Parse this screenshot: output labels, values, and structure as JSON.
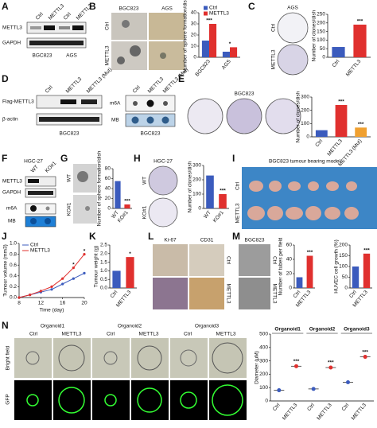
{
  "panels": {
    "labels": [
      "A",
      "B",
      "C",
      "D",
      "E",
      "F",
      "G",
      "H",
      "I",
      "J",
      "K",
      "L",
      "M",
      "N"
    ],
    "a": [
      "Ctrl",
      "METTL3",
      "Ctrl",
      "METTL3",
      "METTL3",
      "GAPDH",
      "BGC823",
      "AGS"
    ],
    "b": [
      "BGC823",
      "AGS",
      "Ctrl",
      "METTL3"
    ],
    "c": [
      "AGS",
      "Ctrl",
      "METTL3"
    ],
    "d": [
      "Ctrl",
      "METTL3",
      "METTL3 (Mut)",
      "Ctrl",
      "METTL3",
      "METTL3 (Mut)",
      "Flag-METTL3",
      "β-actin",
      "m6A",
      "MB",
      "BGC823",
      "BGC823"
    ],
    "e": [
      "BGC823"
    ],
    "f": [
      "HGC-27",
      "WT",
      "KO#1",
      "METTL3",
      "GAPDH",
      "m6A",
      "MB"
    ],
    "g": [
      "WT",
      "KO#1"
    ],
    "h": [
      "HGC-27",
      "WT",
      "KO#1"
    ],
    "i": [
      "BGC823 tumour bearing model",
      "Ctrl",
      "METTL3"
    ],
    "l": [
      "Ki-67",
      "CD31",
      "Ctrl",
      "METTL3"
    ],
    "m": [
      "BGC823",
      "Ctrl",
      "METTL3"
    ],
    "n": [
      "Organoid1",
      "Organoid2",
      "Organoid3",
      "Ctrl",
      "METTL3",
      "Ctrl",
      "METTL3",
      "Ctrl",
      "METTL3",
      "Bright field",
      "GFP"
    ]
  },
  "chart_data": [
    {
      "type": "bar",
      "y_label": "Number of sphere formation/dish",
      "categories": [
        "BGC823",
        "AGS"
      ],
      "series": [
        {
          "name": "Ctrl",
          "color": "#3b5bbd",
          "values": [
            15,
            5
          ]
        },
        {
          "name": "METTL3",
          "color": "#e0302e",
          "values": [
            30,
            9
          ]
        }
      ],
      "ylim": [
        0,
        40
      ],
      "yticks": [
        0,
        10,
        20,
        30,
        40
      ],
      "annotations": [
        "***",
        "*"
      ]
    },
    {
      "type": "bar",
      "y_label": "Number of clones/dish",
      "categories": [
        "Ctrl",
        "METTL3"
      ],
      "values": [
        60,
        190
      ],
      "colors": [
        "#3b5bbd",
        "#e0302e"
      ],
      "ylim": [
        0,
        250
      ],
      "yticks": [
        0,
        50,
        100,
        150,
        200,
        250
      ],
      "annotations": [
        "***"
      ]
    },
    {
      "type": "bar",
      "y_label": "Number of clones/dish",
      "categories": [
        "Ctrl",
        "METTL3",
        "METTL3 (Mut)"
      ],
      "values": [
        50,
        240,
        70
      ],
      "colors": [
        "#3b5bbd",
        "#e0302e",
        "#f0a030"
      ],
      "ylim": [
        0,
        300
      ],
      "yticks": [
        0,
        100,
        200,
        300
      ],
      "annotations": [
        "***",
        "***"
      ]
    },
    {
      "type": "bar",
      "y_label": "Number of sphere formation/dish",
      "categories": [
        "WT",
        "KO#1"
      ],
      "values": [
        55,
        8
      ],
      "colors": [
        "#3b5bbd",
        "#e0302e"
      ],
      "ylim": [
        0,
        80
      ],
      "yticks": [
        0,
        20,
        40,
        60,
        80
      ],
      "annotations": [
        "***"
      ]
    },
    {
      "type": "bar",
      "y_label": "Number of clones/dish",
      "categories": [
        "WT",
        "KO#1"
      ],
      "values": [
        230,
        100
      ],
      "colors": [
        "#3b5bbd",
        "#e0302e"
      ],
      "ylim": [
        0,
        300
      ],
      "yticks": [
        0,
        100,
        200,
        300
      ],
      "annotations": [
        "***"
      ]
    },
    {
      "type": "line",
      "y_label": "Tumour volume (mm3)",
      "x_label": "Time (day)",
      "x": [
        8,
        10,
        12,
        14,
        16,
        18,
        20
      ],
      "series": [
        {
          "name": "Ctrl",
          "color": "#3b5bbd",
          "values": [
            0,
            0.05,
            0.1,
            0.15,
            0.25,
            0.35,
            0.45
          ]
        },
        {
          "name": "METTL3",
          "color": "#e0302e",
          "values": [
            0,
            0.05,
            0.12,
            0.2,
            0.35,
            0.55,
            0.8
          ]
        }
      ],
      "xlim": [
        8,
        20
      ],
      "xticks": [
        8,
        12,
        16,
        20
      ],
      "ylim": [
        0,
        1
      ],
      "yticks": [
        {
          "value": 0,
          "label": "0.0"
        },
        0.2,
        0.4,
        0.6,
        0.8,
        {
          "value": 1,
          "label": "1.0"
        }
      ],
      "annotations": [
        "*",
        "*"
      ]
    },
    {
      "type": "bar",
      "y_label": "Tumour weight (g)",
      "categories": [
        "Ctrl",
        "METTL3"
      ],
      "values": [
        1.0,
        1.8
      ],
      "colors": [
        "#3b5bbd",
        "#e0302e"
      ],
      "ylim": [
        0,
        2.5
      ],
      "yticks": [
        {
          "value": 0,
          "label": "0.0"
        },
        0.5,
        {
          "value": 1,
          "label": "1.0"
        },
        1.5,
        {
          "value": 2,
          "label": "2.0"
        },
        2.5
      ],
      "annotations": [
        "*"
      ]
    },
    {
      "type": "bar",
      "y_label": "Number of tubes per field",
      "categories": [
        "Ctrl",
        "METTL3"
      ],
      "values": [
        15,
        45
      ],
      "colors": [
        "#3b5bbd",
        "#e0302e"
      ],
      "ylim": [
        0,
        60
      ],
      "yticks": [
        0,
        20,
        40,
        60
      ],
      "annotations": [
        "***"
      ]
    },
    {
      "type": "bar",
      "y_label": "HUVEC cell growth (%)",
      "categories": [
        "Ctrl",
        "METTL3"
      ],
      "values": [
        100,
        160
      ],
      "colors": [
        "#3b5bbd",
        "#e0302e"
      ],
      "ylim": [
        0,
        200
      ],
      "yticks": [
        0,
        50,
        100,
        150,
        200
      ],
      "annotations": [
        "***"
      ]
    },
    {
      "type": "dot",
      "y_label": "Diameter (μM)",
      "groups": [
        "Organoid1",
        "Organoid2",
        "Organoid3"
      ],
      "categories": [
        "Ctrl",
        "METTL3",
        "Ctrl",
        "METTL3",
        "Ctrl",
        "METTL3"
      ],
      "values": [
        80,
        260,
        90,
        250,
        140,
        330
      ],
      "colors": [
        "#3b5bbd",
        "#e0302e",
        "#3b5bbd",
        "#e0302e",
        "#3b5bbd",
        "#e0302e"
      ],
      "ylim": [
        0,
        500
      ],
      "yticks": [
        0,
        100,
        200,
        300,
        400,
        500
      ],
      "annotations": [
        "***",
        "***",
        "***"
      ]
    }
  ]
}
